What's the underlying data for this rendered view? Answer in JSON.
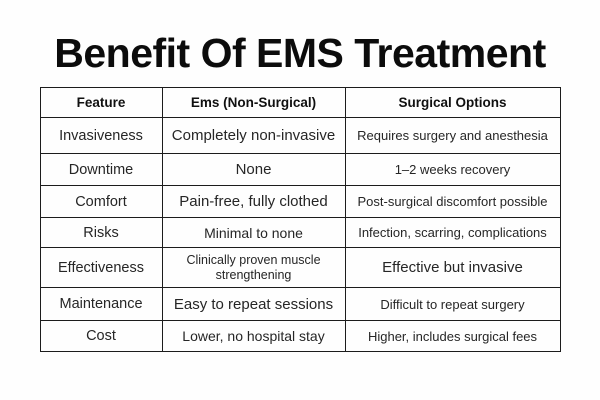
{
  "page": {
    "title": "Benefit Of EMS Treatment",
    "background_color": "#fefefe",
    "title_color": "#0c0c0c",
    "table_border_color": "#1c1c1c",
    "cell_text_color": "#262626"
  },
  "table": {
    "columns": [
      "Feature",
      "Ems (Non-Surgical)",
      "Surgical Options"
    ],
    "rows": [
      {
        "feature": "Invasiveness",
        "ems": "Completely non-invasive",
        "surgical": "Requires surgery and anesthesia"
      },
      {
        "feature": "Downtime",
        "ems": "None",
        "surgical": "1–2 weeks recovery"
      },
      {
        "feature": "Comfort",
        "ems": "Pain-free, fully clothed",
        "surgical": "Post-surgical discomfort possible"
      },
      {
        "feature": "Risks",
        "ems": "Minimal to none",
        "surgical": "Infection, scarring, complications"
      },
      {
        "feature": "Effectiveness",
        "ems": "Clinically proven muscle strengthening",
        "surgical": "Effective but invasive"
      },
      {
        "feature": "Maintenance",
        "ems": "Easy to repeat sessions",
        "surgical": "Difficult to repeat surgery"
      },
      {
        "feature": "Cost",
        "ems": "Lower, no hospital stay",
        "surgical": "Higher, includes surgical fees"
      }
    ]
  }
}
